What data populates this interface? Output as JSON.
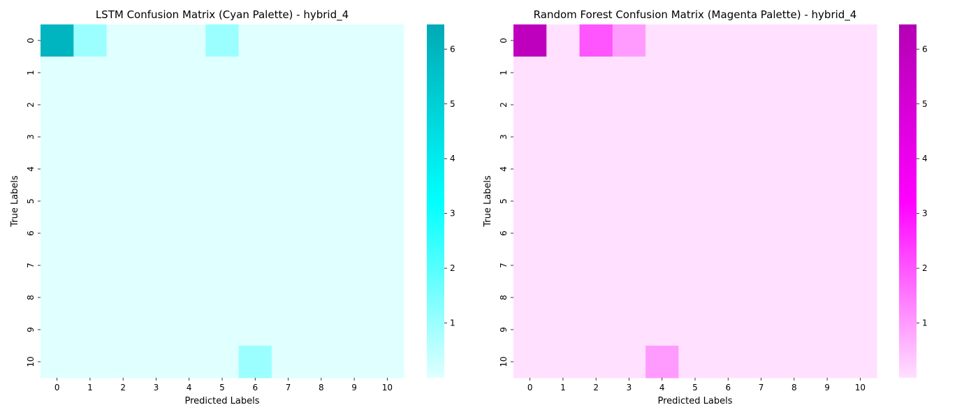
{
  "chart_data": [
    {
      "type": "heatmap",
      "title": "LSTM Confusion Matrix (Cyan Palette) - hybrid_4",
      "xlabel": "Predicted Labels",
      "ylabel": "True Labels",
      "x_categories": [
        "0",
        "1",
        "2",
        "3",
        "4",
        "5",
        "6",
        "7",
        "8",
        "9",
        "10"
      ],
      "y_categories": [
        "0",
        "1",
        "2",
        "3",
        "4",
        "5",
        "6",
        "7",
        "8",
        "9",
        "10"
      ],
      "matrix": [
        [
          6,
          1,
          0,
          0,
          0,
          1,
          0,
          0,
          0,
          0,
          0
        ],
        [
          0,
          0,
          0,
          0,
          0,
          0,
          0,
          0,
          0,
          0,
          0
        ],
        [
          0,
          0,
          0,
          0,
          0,
          0,
          0,
          0,
          0,
          0,
          0
        ],
        [
          0,
          0,
          0,
          0,
          0,
          0,
          0,
          0,
          0,
          0,
          0
        ],
        [
          0,
          0,
          0,
          0,
          0,
          0,
          0,
          0,
          0,
          0,
          0
        ],
        [
          0,
          0,
          0,
          0,
          0,
          0,
          0,
          0,
          0,
          0,
          0
        ],
        [
          0,
          0,
          0,
          0,
          0,
          0,
          0,
          0,
          0,
          0,
          0
        ],
        [
          0,
          0,
          0,
          0,
          0,
          0,
          0,
          0,
          0,
          0,
          0
        ],
        [
          0,
          0,
          0,
          0,
          0,
          0,
          0,
          0,
          0,
          0,
          0
        ],
        [
          0,
          0,
          0,
          0,
          0,
          0,
          0,
          0,
          0,
          0,
          0
        ],
        [
          0,
          0,
          0,
          0,
          0,
          0,
          1,
          0,
          0,
          0,
          0
        ]
      ],
      "colorbar": {
        "ticks": [
          "1",
          "2",
          "3",
          "4",
          "5",
          "6"
        ],
        "range": [
          0,
          6.45
        ]
      },
      "colormap": [
        "#e0ffff",
        "#00ffff",
        "#00a9b5"
      ],
      "grid": false
    },
    {
      "type": "heatmap",
      "title": "Random Forest Confusion Matrix (Magenta Palette) - hybrid_4",
      "xlabel": "Predicted Labels",
      "ylabel": "True Labels",
      "x_categories": [
        "0",
        "1",
        "2",
        "3",
        "4",
        "5",
        "6",
        "7",
        "8",
        "9",
        "10"
      ],
      "y_categories": [
        "0",
        "1",
        "2",
        "3",
        "4",
        "5",
        "6",
        "7",
        "8",
        "9",
        "10"
      ],
      "matrix": [
        [
          6,
          0,
          2,
          1,
          0,
          0,
          0,
          0,
          0,
          0,
          0
        ],
        [
          0,
          0,
          0,
          0,
          0,
          0,
          0,
          0,
          0,
          0,
          0
        ],
        [
          0,
          0,
          0,
          0,
          0,
          0,
          0,
          0,
          0,
          0,
          0
        ],
        [
          0,
          0,
          0,
          0,
          0,
          0,
          0,
          0,
          0,
          0,
          0
        ],
        [
          0,
          0,
          0,
          0,
          0,
          0,
          0,
          0,
          0,
          0,
          0
        ],
        [
          0,
          0,
          0,
          0,
          0,
          0,
          0,
          0,
          0,
          0,
          0
        ],
        [
          0,
          0,
          0,
          0,
          0,
          0,
          0,
          0,
          0,
          0,
          0
        ],
        [
          0,
          0,
          0,
          0,
          0,
          0,
          0,
          0,
          0,
          0,
          0
        ],
        [
          0,
          0,
          0,
          0,
          0,
          0,
          0,
          0,
          0,
          0,
          0
        ],
        [
          0,
          0,
          0,
          0,
          0,
          0,
          0,
          0,
          0,
          0,
          0
        ],
        [
          0,
          0,
          0,
          0,
          1,
          0,
          0,
          0,
          0,
          0,
          0
        ]
      ],
      "colorbar": {
        "ticks": [
          "1",
          "2",
          "3",
          "4",
          "5",
          "6"
        ],
        "range": [
          0,
          6.45
        ]
      },
      "colormap": [
        "#ffe0ff",
        "#ff00ff",
        "#b300b3"
      ],
      "grid": false
    }
  ]
}
